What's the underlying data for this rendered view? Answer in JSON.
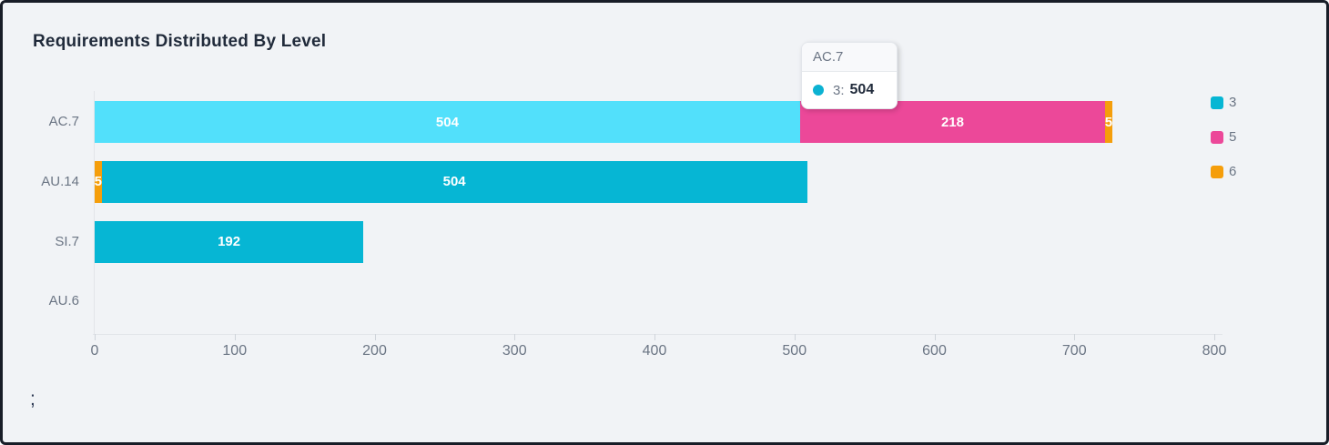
{
  "title": "Requirements Distributed By Level",
  "stray_text": ";",
  "chart_data": {
    "type": "bar",
    "orientation": "horizontal",
    "stacked": true,
    "title": "Requirements Distributed By Level",
    "categories": [
      "AC.7",
      "AU.14",
      "SI.7",
      "AU.6"
    ],
    "series": [
      {
        "name": "3",
        "color": "#06b6d4",
        "values": [
          504,
          504,
          192,
          0
        ]
      },
      {
        "name": "5",
        "color": "#ec4899",
        "values": [
          218,
          0,
          0,
          0
        ]
      },
      {
        "name": "6",
        "color": "#f59e0b",
        "values": [
          5,
          5,
          0,
          0
        ]
      }
    ],
    "bars_draw_order": [
      {
        "category": "AC.7",
        "segments": [
          {
            "series": "3",
            "value": 504,
            "label": "504",
            "highlighted": true
          },
          {
            "series": "5",
            "value": 218,
            "label": "218"
          },
          {
            "series": "6",
            "value": 5,
            "label": "5"
          }
        ]
      },
      {
        "category": "AU.14",
        "segments": [
          {
            "series": "6",
            "value": 5,
            "label": "5"
          },
          {
            "series": "3",
            "value": 504,
            "label": "504"
          }
        ]
      },
      {
        "category": "SI.7",
        "segments": [
          {
            "series": "3",
            "value": 192,
            "label": "192"
          }
        ]
      },
      {
        "category": "AU.6",
        "segments": []
      }
    ],
    "xlim": [
      0,
      800
    ],
    "xticks": [
      0,
      100,
      200,
      300,
      400,
      500,
      600,
      700,
      800
    ],
    "grid": false,
    "legend_position": "right",
    "legend": [
      {
        "label": "3",
        "color": "#06b6d4"
      },
      {
        "label": "5",
        "color": "#ec4899"
      },
      {
        "label": "6",
        "color": "#f59e0b"
      }
    ],
    "highlight_color": "#52e0fb",
    "value_label_color": "#ffffff"
  },
  "tooltip": {
    "category": "AC.7",
    "series_label": "3:",
    "value": "504",
    "marker_color": "#0cb2d2"
  }
}
